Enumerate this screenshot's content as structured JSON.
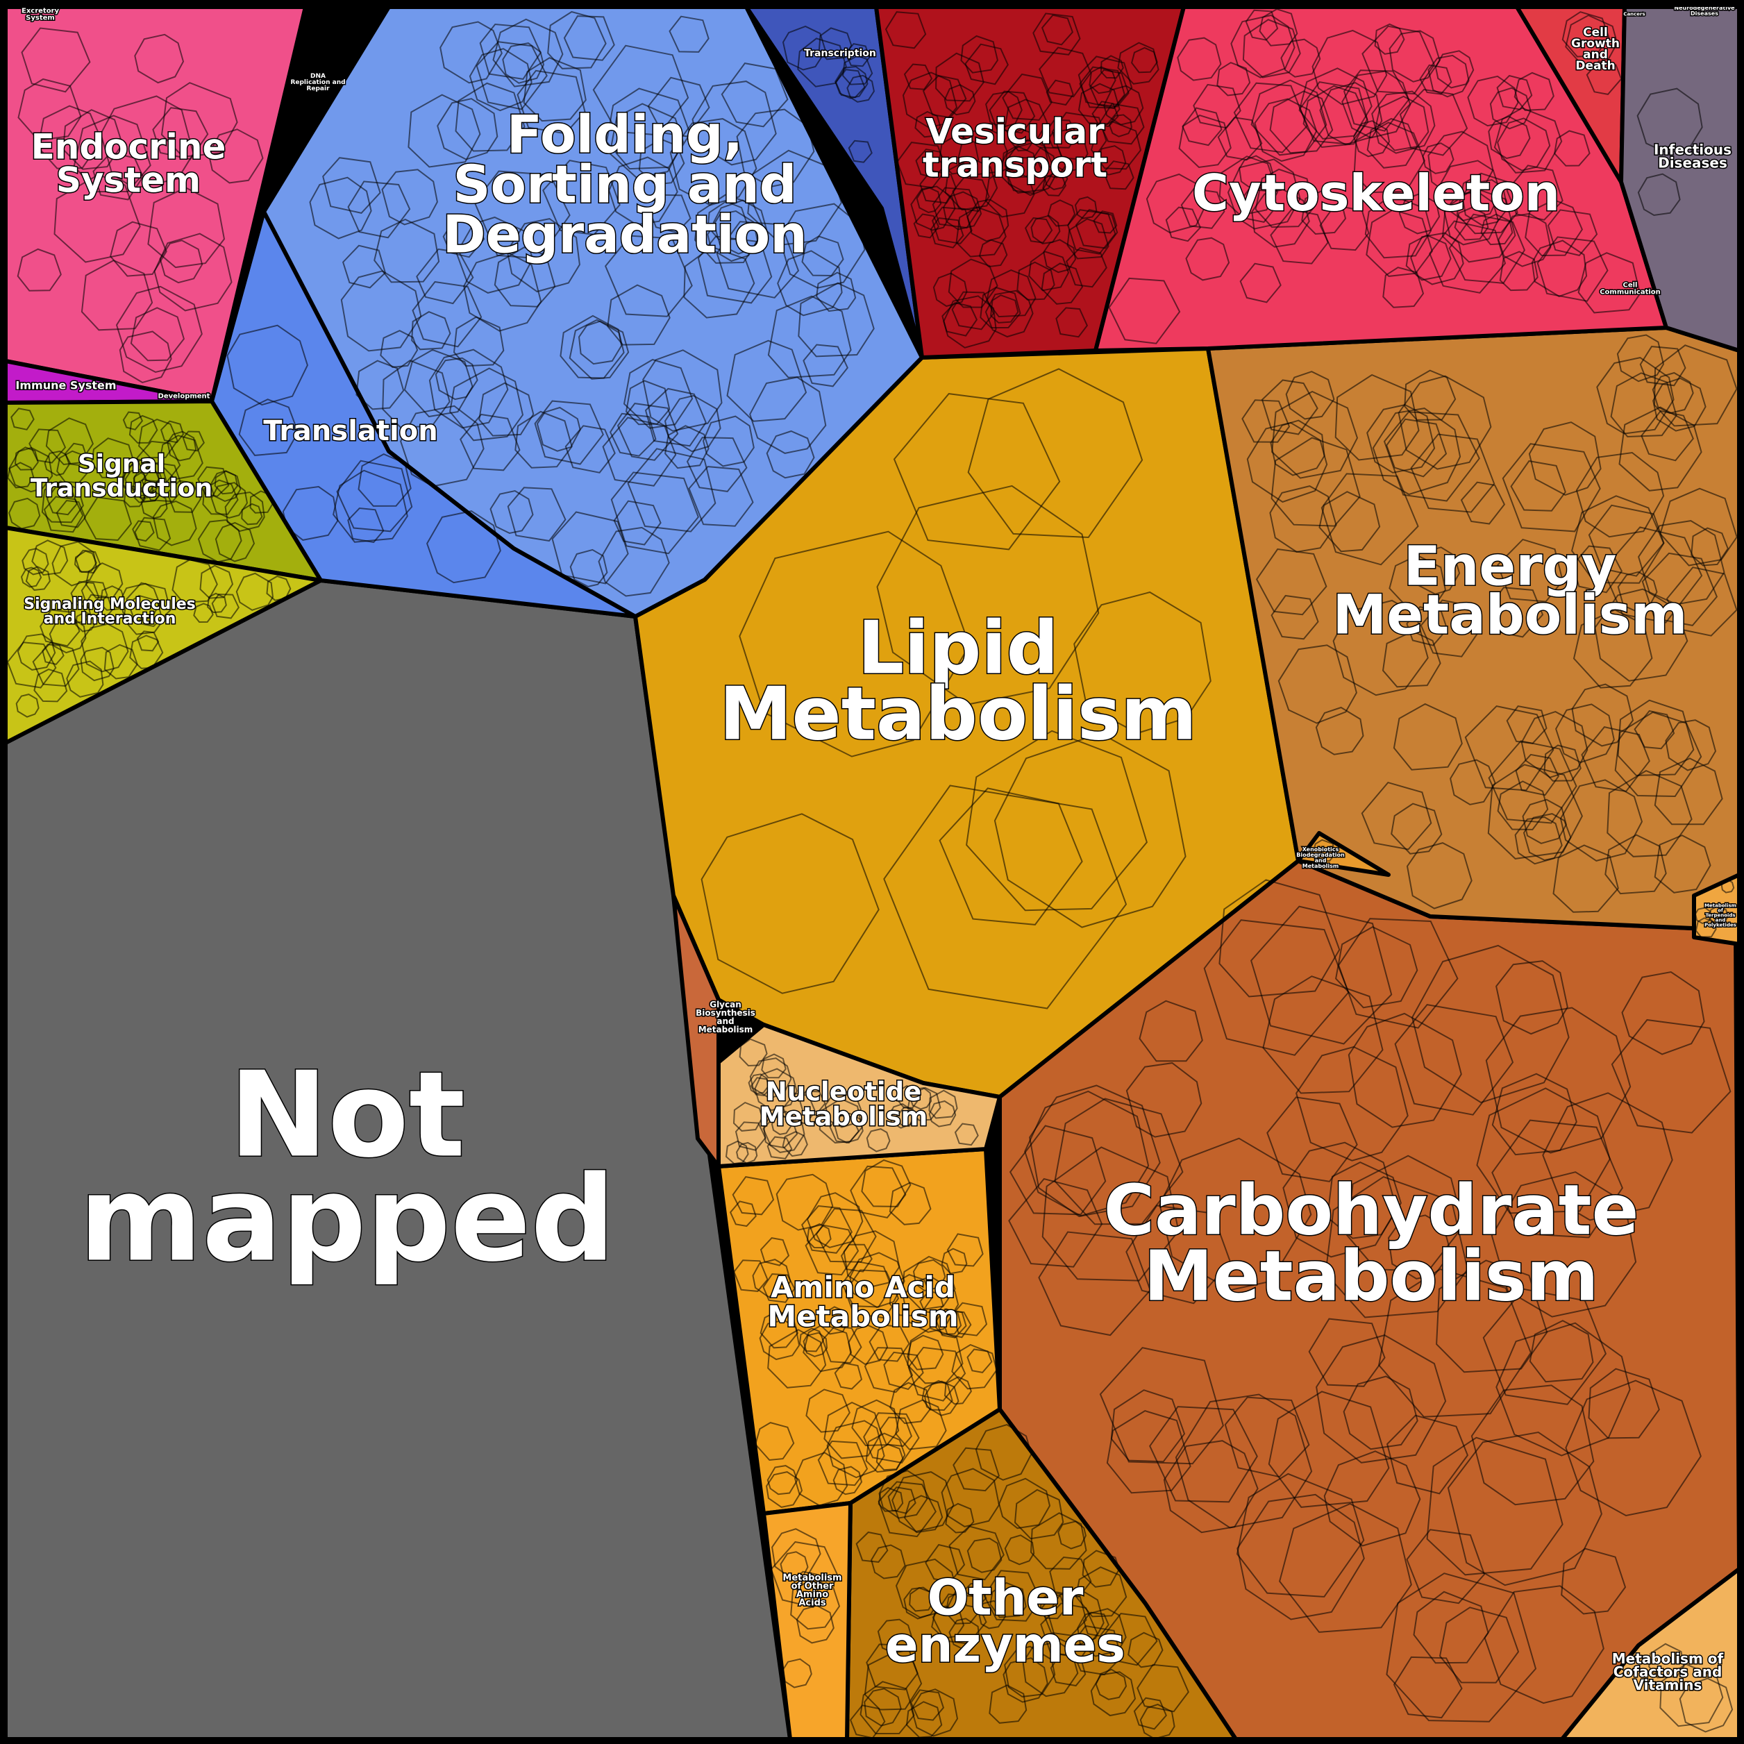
{
  "chart_data": {
    "type": "voronoi-treemap",
    "colors": {
      "not_mapped": "#666666",
      "lipid": "#e0a10f",
      "carbohydrate": "#c2622a",
      "energy": "#c88034",
      "amino_acid": "#f2a21e",
      "other_enzymes": "#bd7a0b",
      "nucleotide": "#eeb86e",
      "folding": "#7199ec",
      "translation": "#5b86ec",
      "transcription": "#3f56bb",
      "replication": "#9ec7f5",
      "vesicular": "#b0121c",
      "cytoskeleton": "#ee3a5e",
      "endocrine": "#f0508a",
      "signal": "#a3af0d",
      "signaling_molecules": "#c8c417",
      "immune": "#c21bc9",
      "infectious": "#75687e"
    },
    "categories": [
      {
        "key": "not_mapped",
        "lines": [
          "Not",
          "mapped"
        ]
      },
      {
        "key": "lipid",
        "lines": [
          "Lipid",
          "Metabolism"
        ]
      },
      {
        "key": "carbohydrate",
        "lines": [
          "Carbohydrate",
          "Metabolism"
        ]
      },
      {
        "key": "energy",
        "lines": [
          "Energy",
          "Metabolism"
        ]
      },
      {
        "key": "folding",
        "lines": [
          "Folding,",
          "Sorting and",
          "Degradation"
        ]
      },
      {
        "key": "cytoskeleton",
        "lines": [
          "Cytoskeleton"
        ]
      },
      {
        "key": "vesicular",
        "lines": [
          "Vesicular",
          "transport"
        ]
      },
      {
        "key": "other_enzymes",
        "lines": [
          "Other",
          "enzymes"
        ]
      },
      {
        "key": "amino_acid",
        "lines": [
          "Amino Acid",
          "Metabolism"
        ]
      },
      {
        "key": "nucleotide",
        "lines": [
          "Nucleotide",
          "Metabolism"
        ]
      },
      {
        "key": "endocrine",
        "lines": [
          "Endocrine",
          "System"
        ]
      },
      {
        "key": "translation",
        "lines": [
          "Translation"
        ]
      },
      {
        "key": "signal",
        "lines": [
          "Signal",
          "Transduction"
        ]
      },
      {
        "key": "signaling_molecules",
        "lines": [
          "Signaling Molecules",
          "and Interaction"
        ]
      },
      {
        "key": "infectious",
        "lines": [
          "Infectious",
          "Diseases"
        ]
      },
      {
        "key": "cell_growth",
        "lines": [
          "Cell",
          "Growth",
          "and",
          "Death"
        ]
      },
      {
        "key": "transcription",
        "lines": [
          "Transcription"
        ]
      },
      {
        "key": "immune",
        "lines": [
          "Immune System"
        ]
      },
      {
        "key": "development",
        "lines": [
          "Development"
        ]
      },
      {
        "key": "glycan",
        "lines": [
          "Glycan",
          "Biosynthesis",
          "and",
          "Metabolism"
        ]
      },
      {
        "key": "other_amino",
        "lines": [
          "Metabolism",
          "of Other",
          "Amino",
          "Acids"
        ]
      },
      {
        "key": "cofactors",
        "lines": [
          "Metabolism of",
          "Cofactors and",
          "Vitamins"
        ]
      },
      {
        "key": "xenobiotics",
        "lines": [
          "Xenobiotics",
          "Biodegradation",
          "and",
          "Metabolism"
        ]
      },
      {
        "key": "terpenoids",
        "lines": [
          "Metabolism",
          "of",
          "Terpenoids",
          "and",
          "Polyketides"
        ]
      },
      {
        "key": "replication",
        "lines": [
          "DNA",
          "Replication and",
          "Repair"
        ]
      },
      {
        "key": "cell_comm",
        "lines": [
          "Cell",
          "Communication"
        ]
      },
      {
        "key": "excretory",
        "lines": [
          "Excretory",
          "System"
        ]
      },
      {
        "key": "cancers",
        "lines": [
          "Cancers"
        ]
      },
      {
        "key": "neuro",
        "lines": [
          "Neurodegenerative",
          "Diseases"
        ]
      }
    ]
  }
}
